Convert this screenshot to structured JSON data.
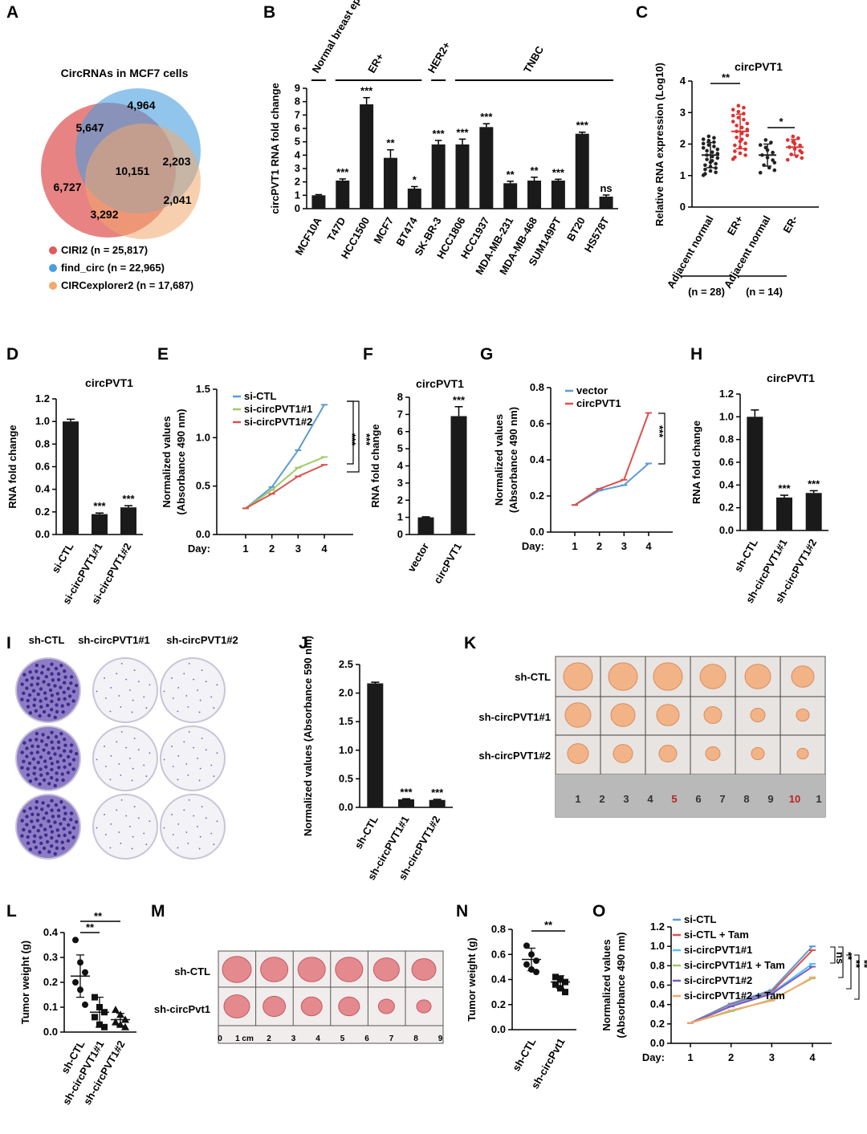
{
  "panel_letters": [
    "A",
    "B",
    "C",
    "D",
    "E",
    "F",
    "G",
    "H",
    "I",
    "J",
    "K",
    "L",
    "M",
    "N",
    "O"
  ],
  "colors": {
    "bar": "#1a1a1a",
    "circ_ciri2": "#e05a5a",
    "circ_findcirc": "#4a9ee0",
    "circ_circexplorer2": "#f3a86b",
    "red_dots": "#e03030",
    "blue_line": "#5b9bd5",
    "green_line": "#9ccc65",
    "red_line": "#d9534f"
  },
  "chart_data": [
    {
      "panel": "A",
      "type": "venn",
      "title": "CircRNAs in MCF7 cells",
      "region_values": [
        "6,727",
        "4,964",
        "5,647",
        "10,151",
        "2,203",
        "2,041",
        "3,292"
      ],
      "legend": [
        "CIRI2 (n = 25,817)",
        "find_circ (n = 22,965)",
        "CIRCexplorer2 (n = 17,687)"
      ]
    },
    {
      "panel": "B",
      "type": "bar",
      "ylabel": "circPVT1 RNA fold change",
      "ylim": [
        0,
        9
      ],
      "yticks": [
        0,
        1,
        2,
        3,
        4,
        5,
        6,
        7,
        8,
        9
      ],
      "groups": [
        "Normal breast epithelial cell",
        "ER+",
        "HER2+",
        "TNBC"
      ],
      "categories": [
        "MCF10A",
        "T47D",
        "HCC1500",
        "MCF7",
        "BT474",
        "SK-BR-3",
        "HCC1806",
        "HCC1937",
        "MDA-MB-231",
        "MDA-MB-468",
        "SUM149PT",
        "BT20",
        "HS578T"
      ],
      "values": [
        1.0,
        2.1,
        7.8,
        3.8,
        1.5,
        4.8,
        4.8,
        6.1,
        1.9,
        2.1,
        2.1,
        5.6,
        0.9
      ],
      "errors": [
        0.05,
        0.12,
        0.5,
        0.6,
        0.15,
        0.3,
        0.4,
        0.25,
        0.15,
        0.25,
        0.1,
        0.12,
        0.12
      ],
      "significance": [
        "",
        "***",
        "***",
        "**",
        "*",
        "***",
        "***",
        "***",
        "**",
        "**",
        "***",
        "***",
        "ns"
      ]
    },
    {
      "panel": "C",
      "type": "scatter",
      "title": "circPVT1",
      "ylabel": "Relative RNA expression (Log10)",
      "ylim": [
        0,
        4
      ],
      "yticks": [
        0,
        1,
        2,
        3,
        4
      ],
      "categories": [
        "Adjacent normal",
        "ER+",
        "Adjacent normal",
        "ER-"
      ],
      "means": [
        1.65,
        2.4,
        1.65,
        1.9
      ],
      "sd": [
        0.4,
        0.55,
        0.35,
        0.25
      ],
      "n_labels": [
        "(n = 28)",
        "(n = 14)"
      ],
      "significance": [
        "**",
        "*"
      ]
    },
    {
      "panel": "D",
      "type": "bar",
      "title": "circPVT1",
      "ylabel": "RNA fold change",
      "ylim": [
        0,
        1.2
      ],
      "yticks": [
        "0.0",
        "0.2",
        "0.4",
        "0.6",
        "0.8",
        "1.0",
        "1.2"
      ],
      "categories": [
        "si-CTL",
        "si-circPVT1#1",
        "si-circPVT1#2"
      ],
      "values": [
        1.0,
        0.18,
        0.24
      ],
      "errors": [
        0.02,
        0.01,
        0.015
      ],
      "significance": [
        "",
        "***",
        "***"
      ]
    },
    {
      "panel": "E",
      "type": "line",
      "ylabel": "Normalized values (Absorbance 490 nm)",
      "xlabel": "Day:",
      "x": [
        1,
        2,
        3,
        4
      ],
      "ylim": [
        0,
        1.5
      ],
      "yticks": [
        "0.0",
        "0.5",
        "1.0",
        "1.5"
      ],
      "series": [
        {
          "name": "si-CTL",
          "values": [
            0.27,
            0.49,
            0.87,
            1.34
          ]
        },
        {
          "name": "si-circPVT1#1",
          "values": [
            0.27,
            0.46,
            0.69,
            0.8
          ]
        },
        {
          "name": "si-circPVT1#2",
          "values": [
            0.27,
            0.42,
            0.6,
            0.72
          ]
        }
      ],
      "significance": [
        "***",
        "***"
      ]
    },
    {
      "panel": "F",
      "type": "bar",
      "title": "circPVT1",
      "ylabel": "RNA fold change",
      "ylim": [
        0,
        8
      ],
      "yticks": [
        0,
        1,
        2,
        3,
        4,
        5,
        6,
        7,
        8
      ],
      "categories": [
        "vector",
        "circPVT1"
      ],
      "values": [
        1.0,
        6.9
      ],
      "errors": [
        0.03,
        0.55
      ],
      "significance": [
        "",
        "***"
      ]
    },
    {
      "panel": "G",
      "type": "line",
      "ylabel": "Normalized values (Absorbance 490 nm)",
      "xlabel": "Day:",
      "x": [
        1,
        2,
        3,
        4
      ],
      "ylim": [
        0,
        0.8
      ],
      "yticks": [
        "0.0",
        "0.2",
        "0.4",
        "0.6",
        "0.8"
      ],
      "series": [
        {
          "name": "vector",
          "values": [
            0.15,
            0.23,
            0.26,
            0.38
          ]
        },
        {
          "name": "circPVT1",
          "values": [
            0.15,
            0.24,
            0.29,
            0.66
          ]
        }
      ],
      "significance": [
        "***"
      ]
    },
    {
      "panel": "H",
      "type": "bar",
      "title": "circPVT1",
      "ylabel": "RNA fold change",
      "ylim": [
        0,
        1.2
      ],
      "yticks": [
        "0.0",
        "0.2",
        "0.4",
        "0.6",
        "0.8",
        "1.0",
        "1.2"
      ],
      "categories": [
        "sh-CTL",
        "sh-circPVT1#1",
        "sh-circPVT1#2"
      ],
      "values": [
        1.0,
        0.29,
        0.33
      ],
      "errors": [
        0.06,
        0.02,
        0.02
      ],
      "significance": [
        "",
        "***",
        "***"
      ]
    },
    {
      "panel": "J",
      "type": "bar",
      "ylabel": "Normalized values (Absorbance 590 nm)",
      "ylim": [
        0,
        2.5
      ],
      "yticks": [
        "0.0",
        "0.5",
        "1.0",
        "1.5",
        "2.0",
        "2.5"
      ],
      "categories": [
        "sh-CTL",
        "sh-circPVT1#1",
        "sh-circPVT1#2"
      ],
      "values": [
        2.17,
        0.14,
        0.13
      ],
      "errors": [
        0.02,
        0.01,
        0.01
      ],
      "significance": [
        "",
        "***",
        "***"
      ]
    },
    {
      "panel": "L",
      "type": "scatter",
      "ylabel": "Tumor weight (g)",
      "ylim": [
        0,
        0.4
      ],
      "yticks": [
        "0.0",
        "0.1",
        "0.2",
        "0.3",
        "0.4"
      ],
      "categories": [
        "sh-CTL",
        "sh-circPVT1#1",
        "sh-circPVT1#2"
      ],
      "points": [
        [
          0.37,
          0.28,
          0.24,
          0.2,
          0.17,
          0.11
        ],
        [
          0.14,
          0.1,
          0.08,
          0.06,
          0.03,
          0.02
        ],
        [
          0.09,
          0.07,
          0.05,
          0.04,
          0.03,
          0.02
        ]
      ],
      "means": [
        0.225,
        0.08,
        0.05
      ],
      "sd": [
        0.085,
        0.06,
        0.025
      ],
      "significance": [
        "**",
        "**"
      ]
    },
    {
      "panel": "N",
      "type": "scatter",
      "ylabel": "Tumor weight (g)",
      "ylim": [
        0,
        0.8
      ],
      "yticks": [
        "0.0",
        "0.2",
        "0.4",
        "0.6",
        "0.8"
      ],
      "categories": [
        "sh-CTL",
        "sh-circPvt1"
      ],
      "points": [
        [
          0.67,
          0.6,
          0.55,
          0.52,
          0.48,
          0.46
        ],
        [
          0.42,
          0.4,
          0.38,
          0.36,
          0.33,
          0.3
        ]
      ],
      "means": [
        0.56,
        0.38
      ],
      "sd": [
        0.09,
        0.05
      ],
      "significance": [
        "**"
      ]
    },
    {
      "panel": "O",
      "type": "line",
      "ylabel": "Normalized values (Absorbance 490 nm)",
      "xlabel": "Day:",
      "x": [
        1,
        2,
        3,
        4
      ],
      "ylim": [
        0,
        1.2
      ],
      "yticks": [
        "0.0",
        "0.2",
        "0.4",
        "0.6",
        "0.8",
        "1.0",
        "1.2"
      ],
      "series": [
        {
          "name": "si-CTL",
          "values": [
            0.21,
            0.41,
            0.55,
            1.0
          ]
        },
        {
          "name": "si-CTL + Tam",
          "values": [
            0.21,
            0.4,
            0.53,
            0.96
          ]
        },
        {
          "name": "si-circPVT1#1",
          "values": [
            0.21,
            0.39,
            0.52,
            0.82
          ]
        },
        {
          "name": "si-circPVT1#1 + Tam",
          "values": [
            0.21,
            0.33,
            0.45,
            0.67
          ]
        },
        {
          "name": "si-circPVT1#2",
          "values": [
            0.21,
            0.38,
            0.51,
            0.79
          ]
        },
        {
          "name": "si-circPVT1#2 + Tam",
          "values": [
            0.21,
            0.34,
            0.44,
            0.68
          ]
        }
      ],
      "significance": [
        "ns",
        "**",
        "**",
        "**"
      ]
    }
  ],
  "photos": {
    "I": {
      "labels": [
        "sh-CTL",
        "sh-circPVT1#1",
        "sh-circPVT1#2"
      ]
    },
    "K": {
      "labels": [
        "sh-CTL",
        "sh-circPVT1#1",
        "sh-circPVT1#2"
      ],
      "ruler": [
        "1",
        "2",
        "3",
        "4",
        "5",
        "6",
        "7",
        "8",
        "9",
        "10",
        "1"
      ]
    },
    "M": {
      "labels": [
        "sh-CTL",
        "sh-circPvt1"
      ],
      "ruler": [
        "0",
        "1 cm",
        "2",
        "3",
        "4",
        "5",
        "6",
        "7",
        "8",
        "9"
      ]
    }
  }
}
